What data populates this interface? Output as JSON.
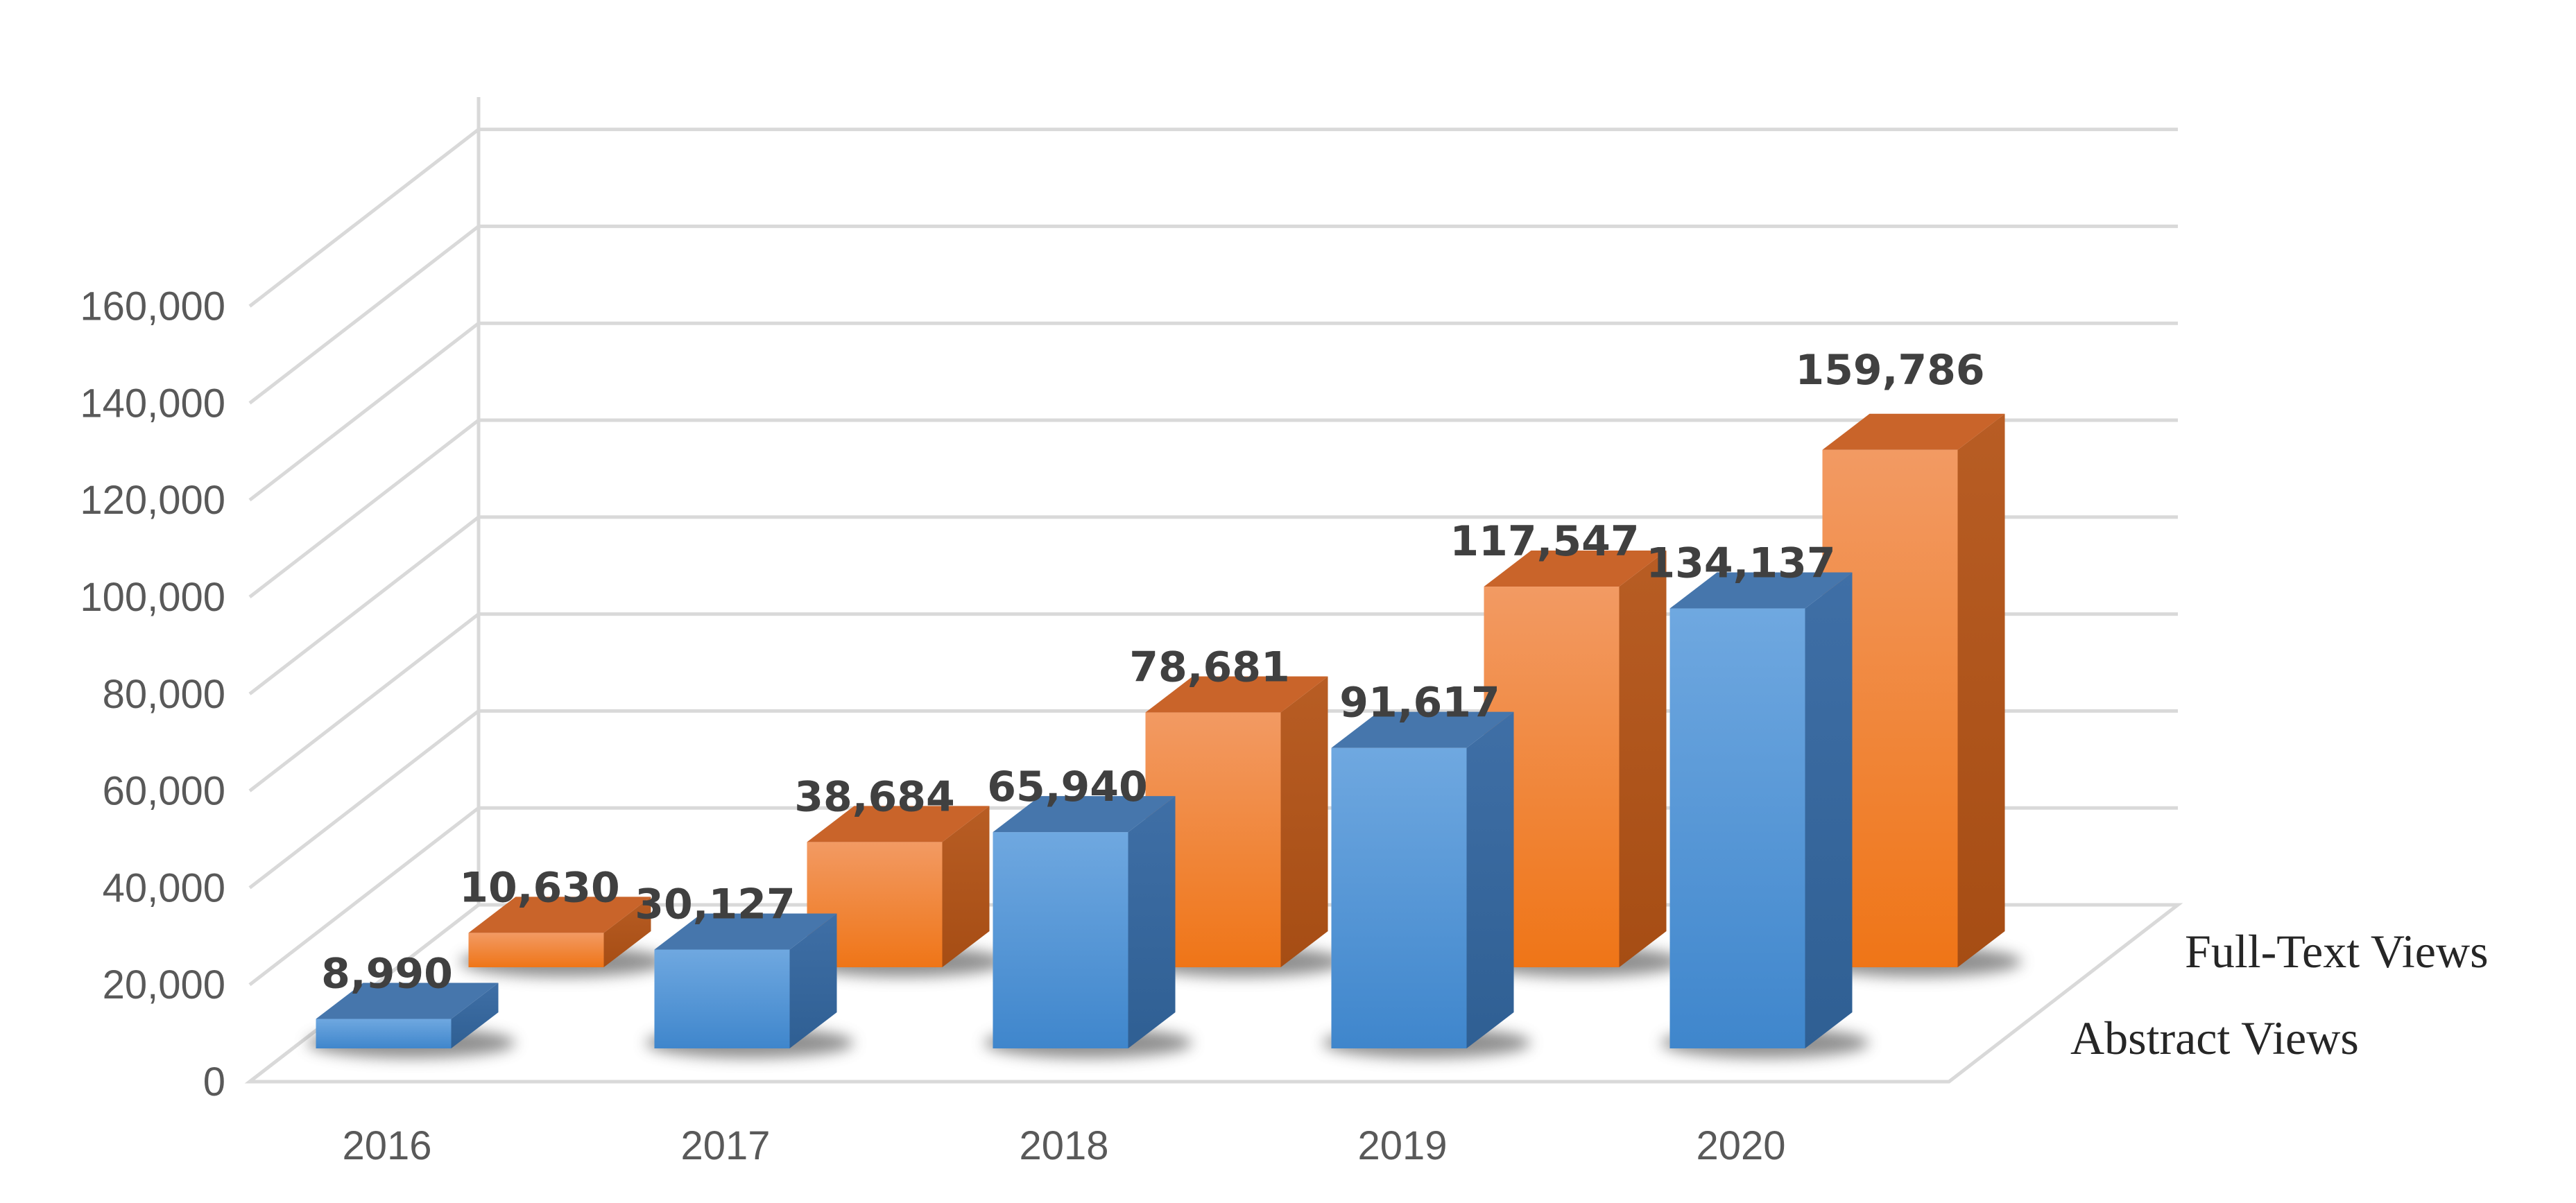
{
  "chart_data": {
    "type": "bar",
    "style": "3d-clustered-column",
    "title": "",
    "xlabel": "",
    "ylabel": "",
    "ylim": [
      0,
      160000
    ],
    "yticks": [
      0,
      20000,
      40000,
      60000,
      80000,
      100000,
      120000,
      140000,
      160000
    ],
    "ytick_labels": [
      "0",
      "20,000",
      "40,000",
      "60,000",
      "80,000",
      "100,000",
      "120,000",
      "140,000",
      "160,000"
    ],
    "grid": true,
    "categories": [
      "2016",
      "2017",
      "2018",
      "2019",
      "2020"
    ],
    "series": [
      {
        "name": "Abstract Views",
        "values": [
          8990,
          30127,
          65940,
          91617,
          134137
        ],
        "labels": [
          "8,990",
          "30,127",
          "65,940",
          "91,617",
          "134,137"
        ],
        "color": "#5b9bd5"
      },
      {
        "name": "Full-Text Views",
        "values": [
          10630,
          38684,
          78681,
          117547,
          159786
        ],
        "labels": [
          "10,630",
          "38,684",
          "78,681",
          "117,547",
          "159,786"
        ],
        "color": "#ed7d31"
      }
    ]
  }
}
